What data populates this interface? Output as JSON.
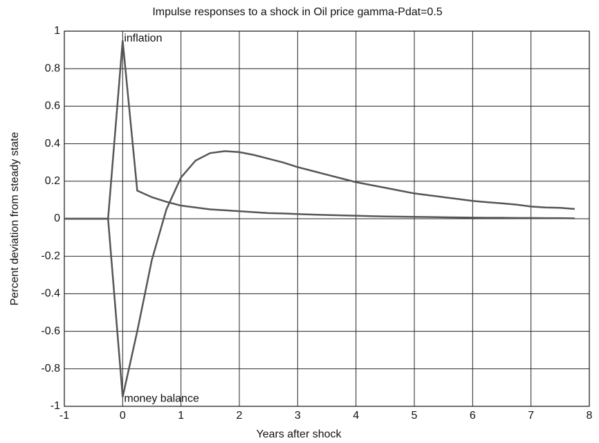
{
  "chart_data": {
    "type": "line",
    "title": "Impulse responses to a shock in Oil price gamma-Pdat=0.5",
    "xlabel": "Years after shock",
    "ylabel": "Percent deviation from steady state",
    "annotations": [
      "inflation",
      "money balance"
    ],
    "x": [
      -1,
      -0.75,
      -0.5,
      -0.25,
      0,
      0.25,
      0.5,
      0.75,
      1,
      1.25,
      1.5,
      1.75,
      2,
      2.25,
      2.5,
      2.75,
      3,
      3.25,
      3.5,
      3.75,
      4,
      4.25,
      4.5,
      4.75,
      5,
      5.25,
      5.5,
      5.75,
      6,
      6.25,
      6.5,
      6.75,
      7,
      7.25,
      7.5,
      7.75
    ],
    "series": [
      {
        "color": "#555555",
        "values": [
          0,
          0,
          0,
          0,
          0.95,
          0.15,
          0.115,
          0.09,
          0.07,
          0.06,
          0.05,
          0.045,
          0.04,
          0.035,
          0.03,
          0.028,
          0.025,
          0.022,
          0.02,
          0.018,
          0.016,
          0.014,
          0.012,
          0.011,
          0.01,
          0.009,
          0.008,
          0.007,
          0.006,
          0.005,
          0.005,
          0.004,
          0.004,
          0.003,
          0.003,
          0.002
        ]
      },
      {
        "color": "#555555",
        "values": [
          0,
          0,
          0,
          0,
          -0.95,
          -0.6,
          -0.22,
          0.05,
          0.22,
          0.31,
          0.35,
          0.36,
          0.355,
          0.34,
          0.32,
          0.3,
          0.275,
          0.255,
          0.235,
          0.215,
          0.195,
          0.18,
          0.165,
          0.15,
          0.135,
          0.125,
          0.115,
          0.105,
          0.095,
          0.088,
          0.082,
          0.075,
          0.065,
          0.06,
          0.058,
          0.052
        ]
      }
    ],
    "xlim": [
      -1,
      8
    ],
    "xticks": [
      -1,
      0,
      1,
      2,
      3,
      4,
      5,
      6,
      7,
      8
    ],
    "ylim": [
      -1,
      1
    ],
    "yticks": [
      -1,
      -0.8,
      -0.6,
      -0.4,
      -0.2,
      0,
      0.2,
      0.4,
      0.6,
      0.8,
      1
    ],
    "grid": true
  }
}
